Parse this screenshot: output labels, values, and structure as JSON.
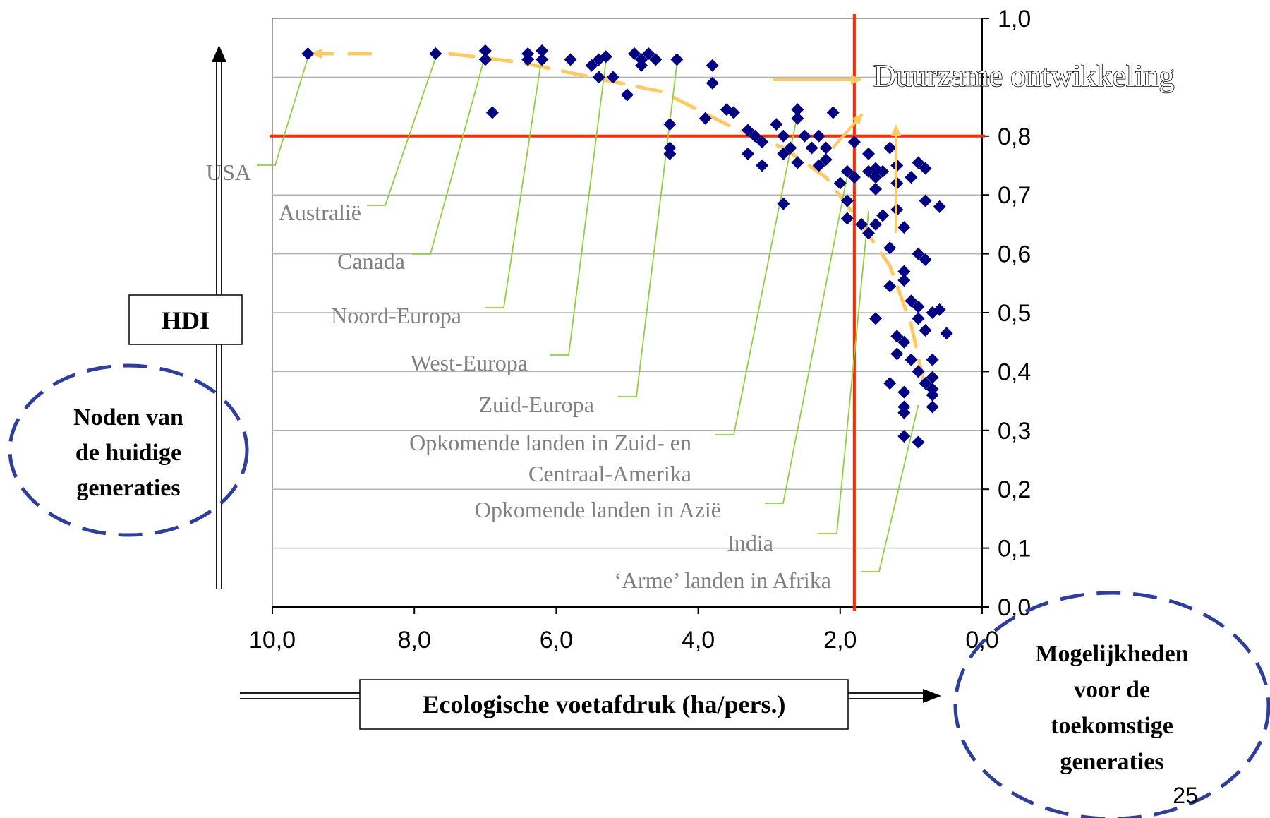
{
  "chart_data": {
    "type": "scatter",
    "xlabel": "Ecologische voetafdruk (ha/pers.)",
    "ylabel": "HDI",
    "xlim": [
      10,
      0
    ],
    "ylim": [
      0,
      1
    ],
    "x_ticks": [
      "10,0",
      "8,0",
      "6,0",
      "4,0",
      "2,0",
      "0,0"
    ],
    "x_tick_values": [
      10,
      8,
      6,
      4,
      2,
      0
    ],
    "y_ticks": [
      "0,0",
      "0,1",
      "0,2",
      "0,3",
      "0,4",
      "0,5",
      "0,6",
      "0,7",
      "0,8",
      "",
      "1,0"
    ],
    "y_tick_values": [
      0,
      0.1,
      0.2,
      0.3,
      0.4,
      0.5,
      0.6,
      0.7,
      0.8,
      0.9,
      1.0
    ],
    "grid": true,
    "threshold_lines": [
      {
        "axis": "y",
        "value": 0.8,
        "color": "#ff2a00"
      },
      {
        "axis": "x",
        "value": 1.8,
        "color": "#ff2a00"
      }
    ],
    "colors": {
      "points": "#000080",
      "threshold": "#ff2a00",
      "trend": "#ffc966",
      "leader": "#8ed13d",
      "region_text": "#7f7f7f",
      "ellipse": "#2e3e9a"
    },
    "points": [
      {
        "x": 9.5,
        "y": 0.94
      },
      {
        "x": 7.7,
        "y": 0.94
      },
      {
        "x": 7.0,
        "y": 0.945
      },
      {
        "x": 7.0,
        "y": 0.93
      },
      {
        "x": 6.9,
        "y": 0.84
      },
      {
        "x": 6.4,
        "y": 0.94
      },
      {
        "x": 6.4,
        "y": 0.93
      },
      {
        "x": 6.2,
        "y": 0.945
      },
      {
        "x": 6.2,
        "y": 0.93
      },
      {
        "x": 5.8,
        "y": 0.93
      },
      {
        "x": 5.5,
        "y": 0.92
      },
      {
        "x": 5.4,
        "y": 0.93
      },
      {
        "x": 5.3,
        "y": 0.935
      },
      {
        "x": 5.4,
        "y": 0.9
      },
      {
        "x": 5.2,
        "y": 0.9
      },
      {
        "x": 5.0,
        "y": 0.87
      },
      {
        "x": 4.9,
        "y": 0.94
      },
      {
        "x": 4.8,
        "y": 0.93
      },
      {
        "x": 4.8,
        "y": 0.92
      },
      {
        "x": 4.7,
        "y": 0.94
      },
      {
        "x": 4.6,
        "y": 0.93
      },
      {
        "x": 4.3,
        "y": 0.93
      },
      {
        "x": 4.4,
        "y": 0.82
      },
      {
        "x": 4.4,
        "y": 0.78
      },
      {
        "x": 4.4,
        "y": 0.77
      },
      {
        "x": 3.8,
        "y": 0.92
      },
      {
        "x": 3.8,
        "y": 0.89
      },
      {
        "x": 3.9,
        "y": 0.83
      },
      {
        "x": 3.6,
        "y": 0.845
      },
      {
        "x": 3.5,
        "y": 0.84
      },
      {
        "x": 3.3,
        "y": 0.81
      },
      {
        "x": 3.2,
        "y": 0.8
      },
      {
        "x": 3.1,
        "y": 0.79
      },
      {
        "x": 3.3,
        "y": 0.77
      },
      {
        "x": 3.1,
        "y": 0.75
      },
      {
        "x": 2.9,
        "y": 0.82
      },
      {
        "x": 2.8,
        "y": 0.8
      },
      {
        "x": 2.8,
        "y": 0.77
      },
      {
        "x": 2.7,
        "y": 0.78
      },
      {
        "x": 2.6,
        "y": 0.83
      },
      {
        "x": 2.6,
        "y": 0.845
      },
      {
        "x": 2.6,
        "y": 0.755
      },
      {
        "x": 2.5,
        "y": 0.8
      },
      {
        "x": 2.4,
        "y": 0.78
      },
      {
        "x": 2.3,
        "y": 0.8
      },
      {
        "x": 2.3,
        "y": 0.75
      },
      {
        "x": 2.2,
        "y": 0.78
      },
      {
        "x": 2.2,
        "y": 0.76
      },
      {
        "x": 2.1,
        "y": 0.84
      },
      {
        "x": 2.0,
        "y": 0.72
      },
      {
        "x": 1.9,
        "y": 0.74
      },
      {
        "x": 1.9,
        "y": 0.69
      },
      {
        "x": 1.8,
        "y": 0.79
      },
      {
        "x": 1.8,
        "y": 0.73
      },
      {
        "x": 1.9,
        "y": 0.66
      },
      {
        "x": 2.8,
        "y": 0.685
      },
      {
        "x": 1.6,
        "y": 0.77
      },
      {
        "x": 1.6,
        "y": 0.74
      },
      {
        "x": 1.5,
        "y": 0.745
      },
      {
        "x": 1.5,
        "y": 0.71
      },
      {
        "x": 1.5,
        "y": 0.73
      },
      {
        "x": 1.4,
        "y": 0.74
      },
      {
        "x": 1.3,
        "y": 0.78
      },
      {
        "x": 1.2,
        "y": 0.75
      },
      {
        "x": 1.2,
        "y": 0.72
      },
      {
        "x": 1.0,
        "y": 0.73
      },
      {
        "x": 0.9,
        "y": 0.755
      },
      {
        "x": 0.8,
        "y": 0.745
      },
      {
        "x": 1.7,
        "y": 0.65
      },
      {
        "x": 1.6,
        "y": 0.635
      },
      {
        "x": 1.5,
        "y": 0.65
      },
      {
        "x": 1.4,
        "y": 0.665
      },
      {
        "x": 1.2,
        "y": 0.675
      },
      {
        "x": 1.1,
        "y": 0.645
      },
      {
        "x": 1.3,
        "y": 0.61
      },
      {
        "x": 0.8,
        "y": 0.69
      },
      {
        "x": 0.6,
        "y": 0.68
      },
      {
        "x": 0.9,
        "y": 0.6
      },
      {
        "x": 0.8,
        "y": 0.59
      },
      {
        "x": 1.1,
        "y": 0.57
      },
      {
        "x": 1.3,
        "y": 0.545
      },
      {
        "x": 1.1,
        "y": 0.555
      },
      {
        "x": 1.0,
        "y": 0.52
      },
      {
        "x": 0.9,
        "y": 0.51
      },
      {
        "x": 0.9,
        "y": 0.49
      },
      {
        "x": 0.7,
        "y": 0.5
      },
      {
        "x": 0.6,
        "y": 0.505
      },
      {
        "x": 0.5,
        "y": 0.465
      },
      {
        "x": 1.5,
        "y": 0.49
      },
      {
        "x": 1.2,
        "y": 0.46
      },
      {
        "x": 1.1,
        "y": 0.45
      },
      {
        "x": 0.8,
        "y": 0.47
      },
      {
        "x": 1.2,
        "y": 0.43
      },
      {
        "x": 1.0,
        "y": 0.42
      },
      {
        "x": 0.9,
        "y": 0.4
      },
      {
        "x": 0.7,
        "y": 0.42
      },
      {
        "x": 0.8,
        "y": 0.38
      },
      {
        "x": 0.7,
        "y": 0.39
      },
      {
        "x": 0.7,
        "y": 0.36
      },
      {
        "x": 0.7,
        "y": 0.37
      },
      {
        "x": 0.7,
        "y": 0.34
      },
      {
        "x": 1.3,
        "y": 0.38
      },
      {
        "x": 1.1,
        "y": 0.365
      },
      {
        "x": 1.1,
        "y": 0.34
      },
      {
        "x": 1.1,
        "y": 0.33
      },
      {
        "x": 1.1,
        "y": 0.29
      },
      {
        "x": 0.9,
        "y": 0.28
      }
    ],
    "region_labels": [
      {
        "text": "USA",
        "pointer": {
          "x": 9.5,
          "y": 0.94
        }
      },
      {
        "text": "Australië",
        "pointer": {
          "x": 7.7,
          "y": 0.94
        }
      },
      {
        "text": "Canada",
        "pointer": {
          "x": 7.0,
          "y": 0.945
        }
      },
      {
        "text": "Noord-Europa",
        "pointer": {
          "x": 6.2,
          "y": 0.945
        }
      },
      {
        "text": "West-Europa",
        "pointer": {
          "x": 5.3,
          "y": 0.935
        }
      },
      {
        "text": "Zuid-Europa",
        "pointer": {
          "x": 4.3,
          "y": 0.93
        }
      },
      {
        "text": "Opkomende landen in Zuid- en",
        "text2": "Centraal-Amerika",
        "pointer": {
          "x": 2.6,
          "y": 0.845
        }
      },
      {
        "text": "Opkomende landen in Azië",
        "pointer": {
          "x": 1.9,
          "y": 0.74
        }
      },
      {
        "text": "India",
        "pointer": {
          "x": 1.6,
          "y": 0.68
        }
      },
      {
        "text": "‘Arme’ landen in Afrika",
        "pointer": {
          "x": 0.9,
          "y": 0.35
        }
      }
    ],
    "trend_path": [
      {
        "x": 7.5,
        "y": 0.94
      },
      {
        "x": 6.5,
        "y": 0.925
      },
      {
        "x": 5.5,
        "y": 0.9
      },
      {
        "x": 4.5,
        "y": 0.875
      },
      {
        "x": 3.6,
        "y": 0.82
      },
      {
        "x": 2.8,
        "y": 0.78
      },
      {
        "x": 2.2,
        "y": 0.73
      },
      {
        "x": 1.7,
        "y": 0.65
      },
      {
        "x": 1.3,
        "y": 0.58
      },
      {
        "x": 1.0,
        "y": 0.48
      },
      {
        "x": 0.8,
        "y": 0.37
      }
    ],
    "trend_head_start": {
      "x": 8.6,
      "y": 0.94
    },
    "trend_head_tip": {
      "x": 9.5,
      "y": 0.94
    }
  },
  "annotations": {
    "sustainable": "Duurzame ontwikkeling",
    "needs_line1": "Noden van",
    "needs_line2": "de huidige",
    "needs_line3": "generaties",
    "future_line1": "Mogelijkheden",
    "future_line2": "voor de",
    "future_line3": "toekomstige",
    "future_line4": "generaties",
    "page_number": "25"
  }
}
